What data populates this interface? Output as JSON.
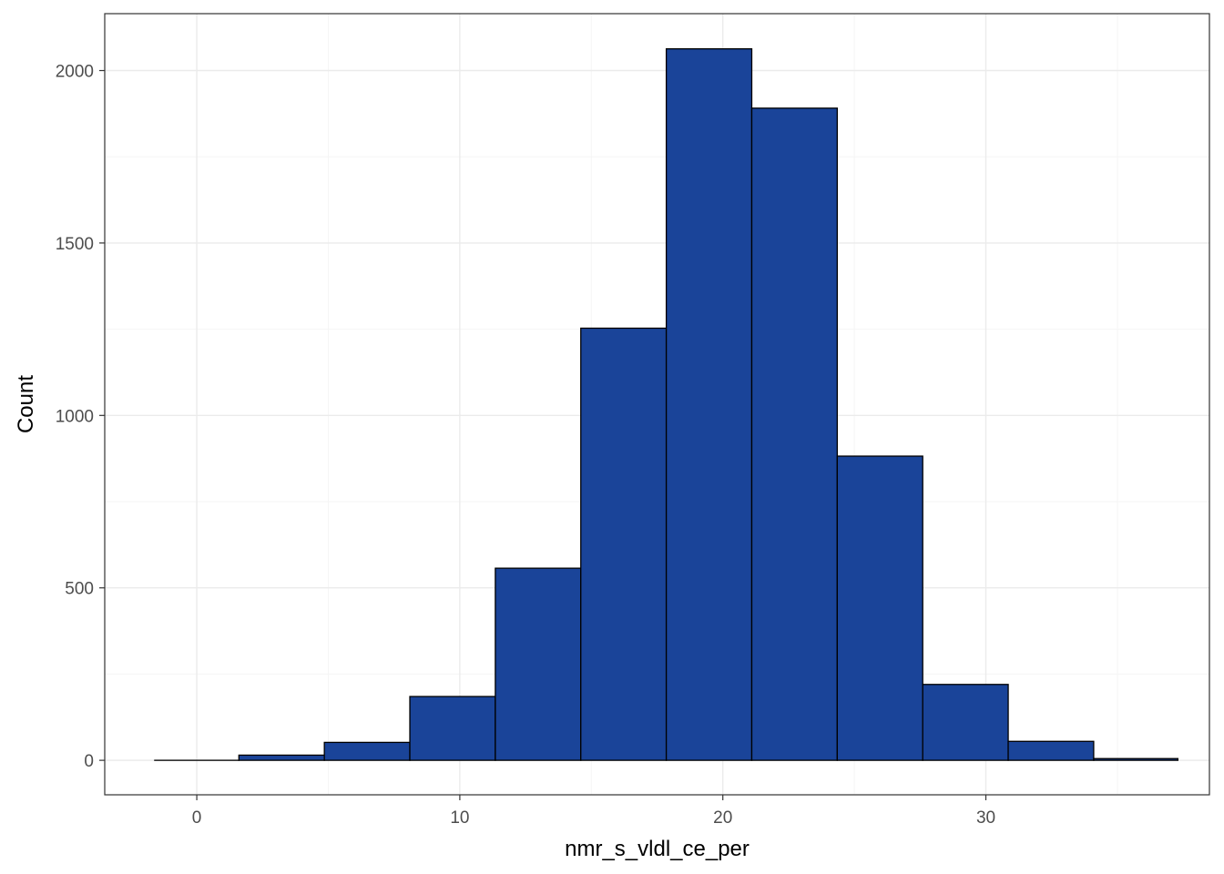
{
  "chart_data": {
    "type": "histogram",
    "xlabel": "nmr_s_vldl_ce_per",
    "ylabel": "Count",
    "xlim": [
      -3.5,
      38.5
    ],
    "ylim": [
      -100,
      2165
    ],
    "x_ticks": [
      0,
      10,
      20,
      30
    ],
    "x_minor_ticks": [
      5,
      15,
      25,
      35
    ],
    "y_ticks": [
      0,
      500,
      1000,
      1500,
      2000
    ],
    "y_minor_ticks": [
      250,
      750,
      1250,
      1750
    ],
    "bins": [
      {
        "x0": -1.6,
        "x1": 1.6,
        "count": 0
      },
      {
        "x0": 1.6,
        "x1": 4.85,
        "count": 15
      },
      {
        "x0": 4.85,
        "x1": 8.1,
        "count": 52
      },
      {
        "x0": 8.1,
        "x1": 11.35,
        "count": 185
      },
      {
        "x0": 11.35,
        "x1": 14.6,
        "count": 557
      },
      {
        "x0": 14.6,
        "x1": 17.85,
        "count": 1253
      },
      {
        "x0": 17.85,
        "x1": 21.1,
        "count": 2063
      },
      {
        "x0": 21.1,
        "x1": 24.35,
        "count": 1891
      },
      {
        "x0": 24.35,
        "x1": 27.6,
        "count": 882
      },
      {
        "x0": 27.6,
        "x1": 30.85,
        "count": 220
      },
      {
        "x0": 30.85,
        "x1": 34.1,
        "count": 55
      },
      {
        "x0": 34.1,
        "x1": 37.3,
        "count": 5
      }
    ],
    "grid": true,
    "legend": "none",
    "colors": {
      "bar_fill": "#1a4499",
      "bar_stroke": "#000000",
      "grid_major": "#ebebeb",
      "grid_minor": "#f5f5f5",
      "panel_border": "#333333",
      "tick_label": "#4d4d4d"
    }
  }
}
